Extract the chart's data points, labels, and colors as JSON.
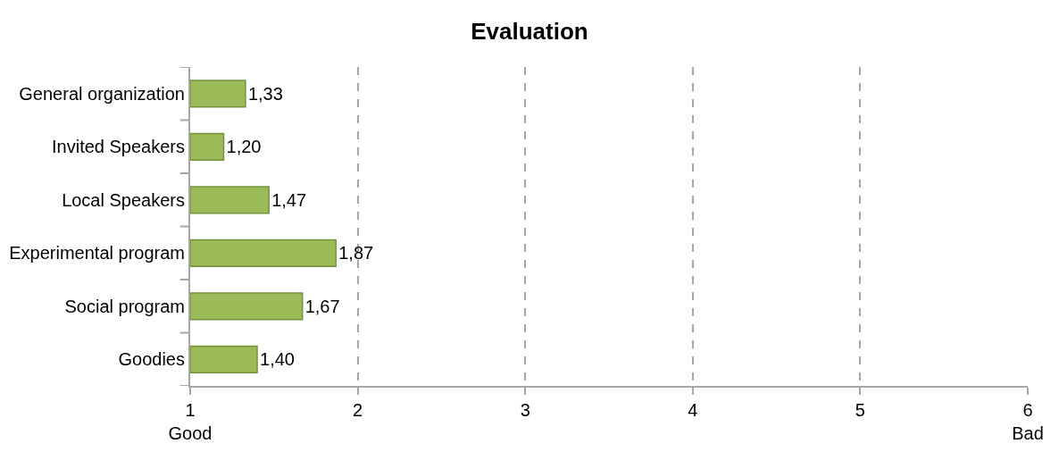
{
  "chart_data": {
    "type": "bar",
    "orientation": "horizontal",
    "title": "Evaluation",
    "categories": [
      "General organization",
      "Invited Speakers",
      "Local Speakers",
      "Experimental program",
      "Social program",
      "Goodies"
    ],
    "values": [
      1.33,
      1.2,
      1.47,
      1.87,
      1.67,
      1.4
    ],
    "value_labels": [
      "1,33",
      "1,20",
      "1,47",
      "1,87",
      "1,67",
      "1,40"
    ],
    "color": "#9bbb59",
    "xlim": [
      1,
      6
    ],
    "xticks": [
      {
        "value": 1,
        "label": "1\nGood"
      },
      2,
      3,
      4,
      5,
      {
        "value": 6,
        "label": "6\nBad"
      }
    ],
    "grid": "x"
  }
}
